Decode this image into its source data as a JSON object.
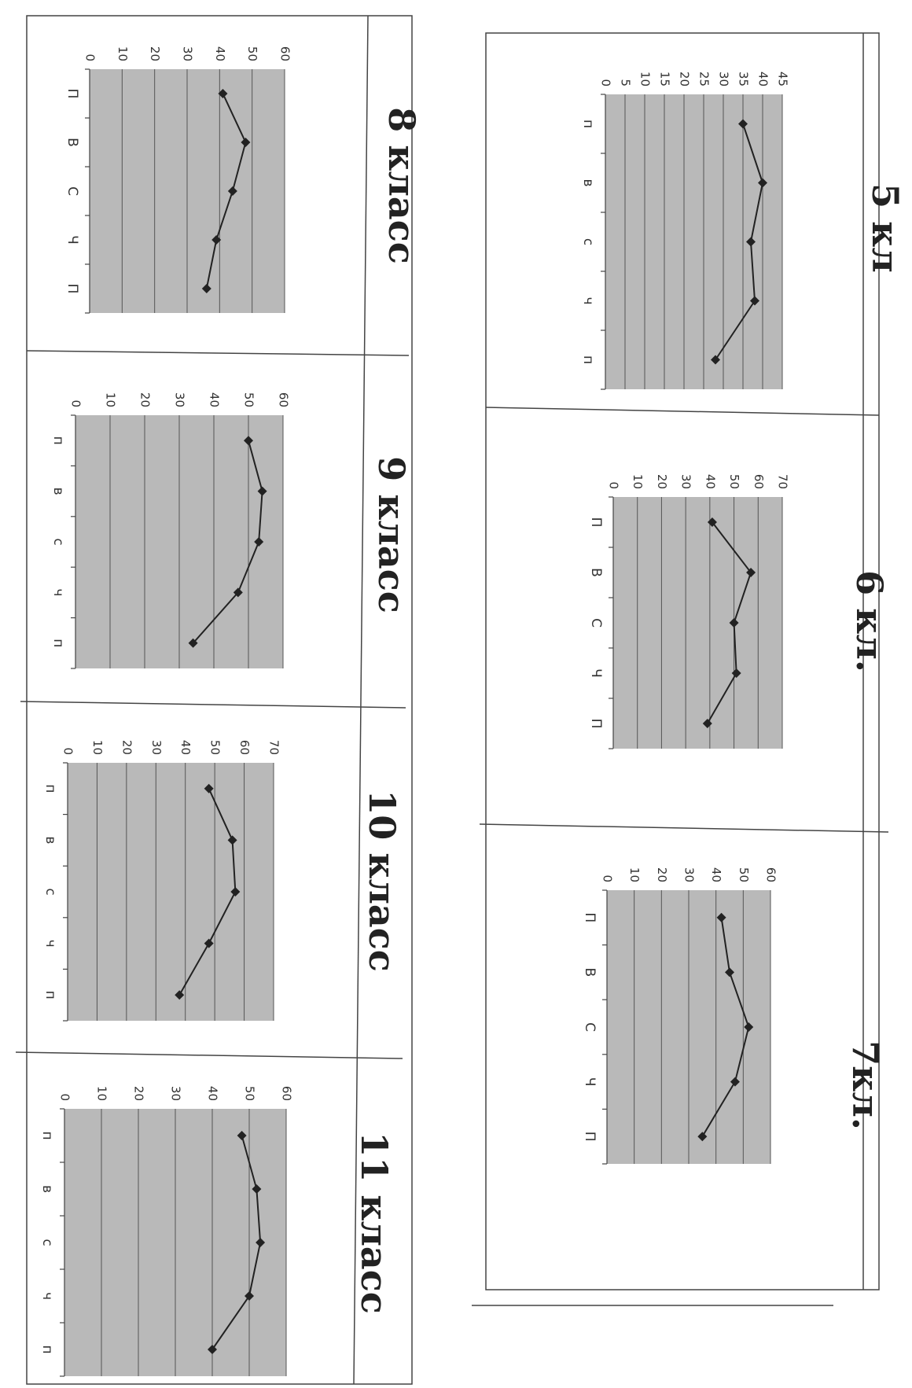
{
  "chart_data": [
    {
      "type": "line",
      "title": "5 кл",
      "categories": [
        "п",
        "в",
        "с",
        "ч",
        "п"
      ],
      "values": [
        35,
        40,
        37,
        38,
        28
      ],
      "ylim": [
        0,
        45
      ],
      "yticks": [
        0,
        5,
        10,
        15,
        20,
        25,
        30,
        35,
        40,
        45
      ],
      "grid": true
    },
    {
      "type": "line",
      "title": "6 кл.",
      "categories": [
        "П",
        "В",
        "С",
        "Ч",
        "П"
      ],
      "values": [
        41,
        57,
        50,
        51,
        39
      ],
      "ylim": [
        0,
        70
      ],
      "yticks": [
        0,
        10,
        20,
        30,
        40,
        50,
        60,
        70
      ],
      "grid": true
    },
    {
      "type": "line",
      "title": "7кл.",
      "categories": [
        "П",
        "В",
        "С",
        "Ч",
        "П"
      ],
      "values": [
        42,
        45,
        52,
        47,
        35
      ],
      "ylim": [
        0,
        60
      ],
      "yticks": [
        0,
        10,
        20,
        30,
        40,
        50,
        60
      ],
      "grid": true
    },
    {
      "type": "line",
      "title": "8 класс",
      "categories": [
        "П",
        "В",
        "С",
        "Ч",
        "П"
      ],
      "values": [
        41,
        48,
        44,
        39,
        36
      ],
      "ylim": [
        0,
        60
      ],
      "yticks": [
        0,
        10,
        20,
        30,
        40,
        50,
        60
      ],
      "grid": true
    },
    {
      "type": "line",
      "title": "9 класс",
      "categories": [
        "п",
        "в",
        "с",
        "ч",
        "п"
      ],
      "values": [
        50,
        54,
        53,
        47,
        34
      ],
      "ylim": [
        0,
        60
      ],
      "yticks": [
        0,
        10,
        20,
        30,
        40,
        50,
        60
      ],
      "grid": true
    },
    {
      "type": "line",
      "title": "10 класс",
      "categories": [
        "п",
        "в",
        "с",
        "ч",
        "п"
      ],
      "values": [
        48,
        56,
        57,
        48,
        38
      ],
      "ylim": [
        0,
        70
      ],
      "yticks": [
        0,
        10,
        20,
        30,
        40,
        50,
        60,
        70
      ],
      "grid": true
    },
    {
      "type": "line",
      "title": "11 класс",
      "categories": [
        "п",
        "в",
        "с",
        "ч",
        "п"
      ],
      "values": [
        48,
        52,
        53,
        50,
        40
      ],
      "ylim": [
        0,
        60
      ],
      "yticks": [
        0,
        10,
        20,
        30,
        40,
        50,
        60
      ],
      "grid": true
    }
  ]
}
